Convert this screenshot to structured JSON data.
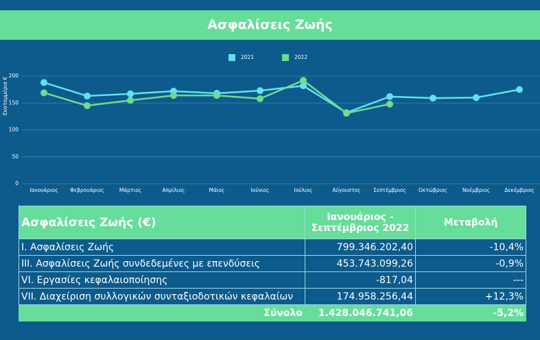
{
  "header": {
    "title": "Ασφαλίσεις Ζωής"
  },
  "chart_data": {
    "type": "line",
    "y_label": "Εκατομμύρια €",
    "categories": [
      "Ιανουάριος",
      "Φεβρουάριος",
      "Μάρτιος",
      "Απρίλιος",
      "Μάιος",
      "Ιούνιος",
      "Ιούλιος",
      "Αύγουστος",
      "Σεπτέμβριος",
      "Οκτώβριος",
      "Νοέμβριος",
      "Δεκέμβριος"
    ],
    "series": [
      {
        "name": "2021",
        "color": "#5fe3f0",
        "values": [
          188,
          163,
          167,
          172,
          168,
          173,
          182,
          132,
          162,
          159,
          160,
          175
        ]
      },
      {
        "name": "2022",
        "color": "#6ddc8f",
        "values": [
          169,
          145,
          155,
          164,
          164,
          158,
          192,
          131,
          148,
          null,
          null,
          null
        ]
      }
    ],
    "ylim": [
      0,
      200
    ],
    "yticks": [
      0,
      50,
      100,
      150,
      200
    ],
    "grid": true
  },
  "table": {
    "header": [
      "Ασφαλίσεις Ζωής (€)",
      "Ιανουάριος - Σεπτέμβριος 2022",
      "Μεταβολή"
    ],
    "rows": [
      [
        "I. Ασφαλίσεις  Ζωής",
        "799.346.202,40",
        "-10,4%"
      ],
      [
        "III. Ασφαλίσεις  Ζωής  συνδεδεμένες με επενδύσεις",
        "453.743.099,26",
        "-0,9%"
      ],
      [
        "VI. Εργασίες κεφαλαιοποίησης",
        "-817,04",
        "---"
      ],
      [
        "VII. Διαχείριση συλλογικών συνταξιοδοτικών κεφαλαίων",
        "174.958.256,44",
        "+12,3%"
      ]
    ],
    "total": [
      "Σύνολο",
      "1.428.046.741,06",
      "-5,2%"
    ]
  }
}
